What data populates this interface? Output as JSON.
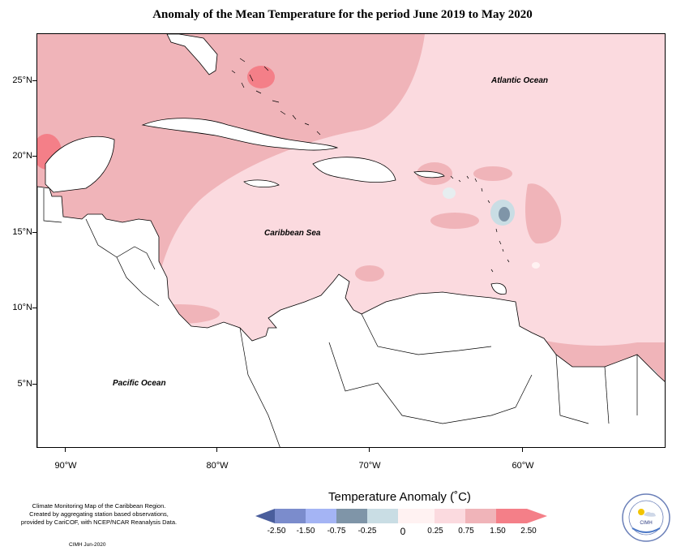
{
  "title": "Anomaly of the Mean Temperature for the period June 2019 to May 2020",
  "map": {
    "labels": {
      "atlantic": "Atlantic Ocean",
      "caribbean": "Caribbean Sea",
      "pacific": "Pacific Ocean"
    },
    "lat_labels": [
      "25°N",
      "20°N",
      "15°N",
      "10°N",
      "5°N"
    ],
    "lon_labels": [
      "90°W",
      "80°W",
      "70°W",
      "60°W"
    ]
  },
  "legend": {
    "title": "Temperature Anomaly (˚C)",
    "tick_labels": [
      "-2.50",
      "-1.50",
      "-0.75",
      "-0.25",
      "0",
      "0.25",
      "0.75",
      "1.50",
      "2.50"
    ],
    "colors": [
      "#4a5e9c",
      "#7b8ccc",
      "#a4b4f4",
      "#7f95a8",
      "#c9dde4",
      "#fff2f2",
      "#fbdadf",
      "#f0b4b9",
      "#f47f88",
      "#f47f88"
    ]
  },
  "footer": {
    "note_line1": "Climate Monitoring Map of the Caribbean Region.",
    "note_line2": "Created by aggregating station based observations,",
    "note_line3": "provided by CariCOF, with NCEP/NCAR Reanalysis Data.",
    "credit": "CIMH  Jun-2020"
  },
  "logo": {
    "text": "CIMH"
  }
}
